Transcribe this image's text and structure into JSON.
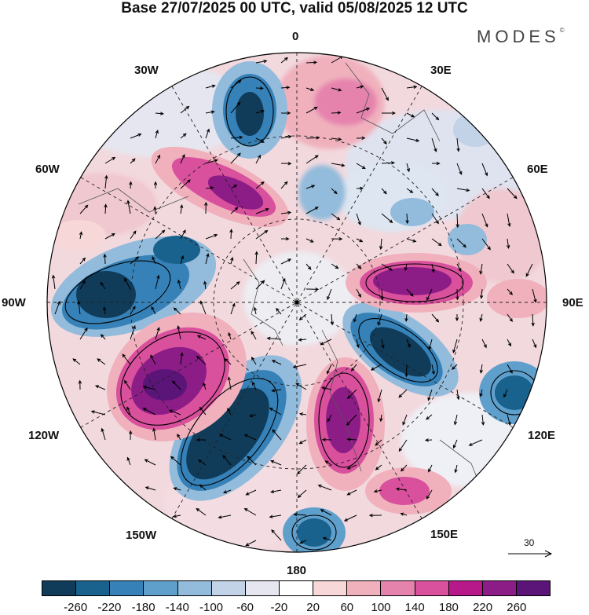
{
  "title": "Base 27/07/2025 00 UTC, valid 05/08/2025 12 UTC",
  "brand": "MODES",
  "brand_mark": "©",
  "longitude_labels": {
    "n0": "0",
    "n30e": "30E",
    "n60e": "60E",
    "n90e": "90E",
    "n120e": "120E",
    "n150e": "150E",
    "n180": "180",
    "n150w": "150W",
    "n120w": "120W",
    "n90w": "90W",
    "n60w": "60W",
    "n30w": "30W"
  },
  "reference_vector": {
    "value": "30"
  },
  "colorbar": {
    "colors": [
      "#103c5a",
      "#19628d",
      "#3682b8",
      "#5f9fcb",
      "#93bbdb",
      "#c2d3e8",
      "#e6e6f0",
      "#ffffff",
      "#f7d7d7",
      "#f0b1bd",
      "#e683ad",
      "#d9509d",
      "#b7198a",
      "#8c1c86",
      "#5b1478"
    ],
    "tick_labels": [
      "-260",
      "-220",
      "-180",
      "-140",
      "-100",
      "-60",
      "-20",
      "20",
      "60",
      "100",
      "140",
      "180",
      "220",
      "260"
    ]
  },
  "colors": {
    "background": "#ffffff",
    "ink": "#111111"
  }
}
